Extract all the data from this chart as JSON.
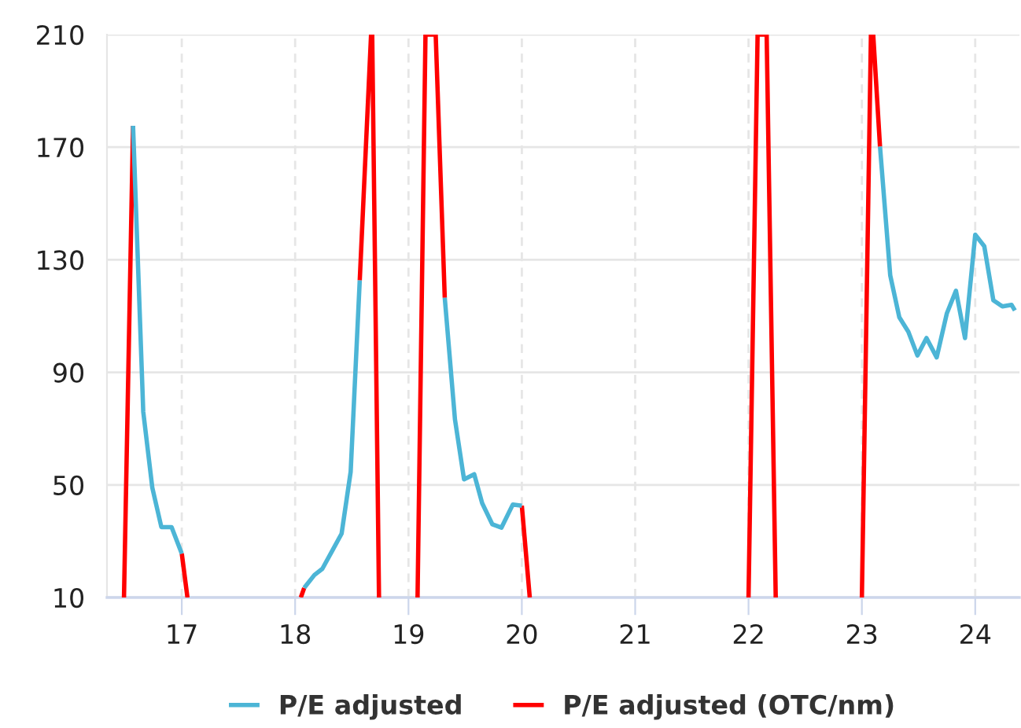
{
  "chart_data": {
    "type": "line",
    "series": [
      {
        "name": "P/E adjusted",
        "color": "#4cb5d6",
        "x": [
          16.57,
          16.66,
          16.74,
          16.82,
          16.91,
          17.0,
          17.5,
          18.08,
          18.17,
          18.24,
          18.33,
          18.41,
          18.49,
          18.57,
          18.9,
          19.32,
          19.41,
          19.49,
          19.58,
          19.65,
          19.74,
          19.82,
          19.92,
          20.0,
          21.0,
          23.16,
          23.25,
          23.33,
          23.41,
          23.49,
          23.57,
          23.66,
          23.75,
          23.83,
          23.91,
          24.0,
          24.08,
          24.16,
          24.24,
          24.32,
          24.35
        ],
        "values": [
          177.6,
          76,
          49,
          35,
          35,
          25.6,
          null,
          13.4,
          18,
          20.2,
          26.8,
          32.7,
          54.7,
          122.7,
          null,
          116.5,
          73.3,
          52,
          53.8,
          43.5,
          36,
          34.8,
          43,
          42.6,
          null,
          170.2,
          124.5,
          109.6,
          104.4,
          96,
          102.2,
          95.3,
          111,
          119,
          102.2,
          138.9,
          134.8,
          115.6,
          113.4,
          114,
          112
        ]
      },
      {
        "name": "P/E adjusted (OTC/nm)",
        "color": "#ff0000",
        "x": [
          16.49,
          16.57,
          16.8,
          17.0,
          17.05,
          17.5,
          18.05,
          18.08,
          18.3,
          18.57,
          18.67,
          18.68,
          18.74,
          18.9,
          19.08,
          19.15,
          19.2,
          19.24,
          19.32,
          19.7,
          20.0,
          20.07,
          21.0,
          22.0,
          22.08,
          22.12,
          22.16,
          22.24,
          22.6,
          23.0,
          23.08,
          23.1,
          23.16
        ],
        "values": [
          10,
          177.6,
          null,
          25.6,
          10,
          null,
          10,
          13.4,
          null,
          122.7,
          210,
          210,
          10,
          null,
          10,
          210,
          210,
          210,
          116.5,
          null,
          42.6,
          10,
          null,
          10,
          210,
          210,
          210,
          10,
          null,
          10,
          210,
          210,
          170.2
        ]
      }
    ],
    "xlim": [
      16.34,
      24.39
    ],
    "xticks": [
      17,
      18,
      19,
      20,
      21,
      22,
      23,
      24
    ],
    "ylim": [
      10,
      210
    ],
    "yticks": [
      10,
      50,
      90,
      130,
      170,
      210
    ],
    "grid": true,
    "legend": "bottom"
  }
}
